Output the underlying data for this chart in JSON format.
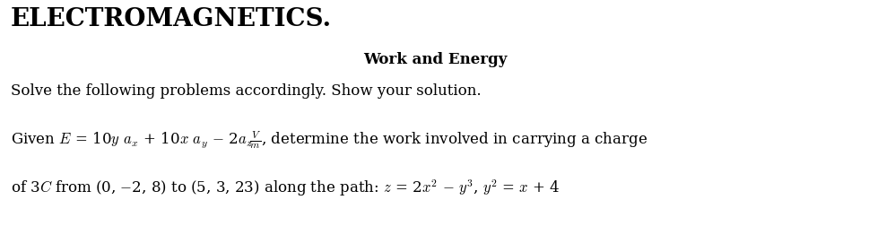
{
  "background_color": "#ffffff",
  "title_text": "ELECTROMAGNETICS.",
  "subtitle_text": "Work and Energy",
  "instruction_text": "Solve the following problems accordingly. Show your solution.",
  "fig_width": 9.7,
  "fig_height": 2.52,
  "dpi": 100,
  "title_fontsize": 20,
  "subtitle_fontsize": 12,
  "body_fontsize": 12
}
